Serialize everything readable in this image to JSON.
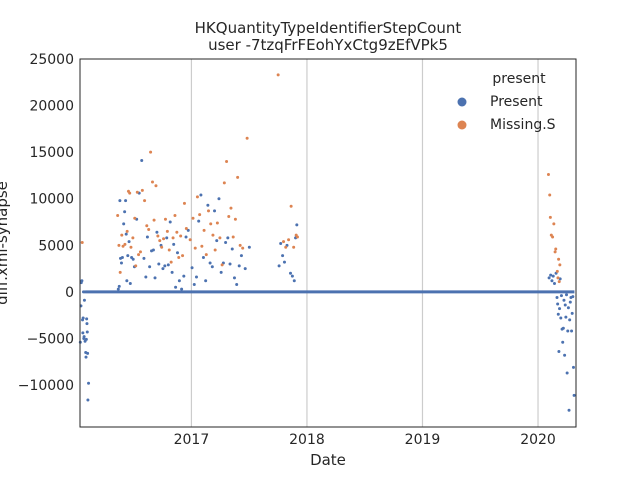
{
  "chart_data": {
    "type": "scatter",
    "title_line1": "HKQuantityTypeIdentifierStepCount",
    "title_line2": "user -7tzqFrFEohYxCtg9zEfVPk5",
    "xlabel": "Date",
    "ylabel": "diff.xml-synapse",
    "xlim": [
      "2016-01-15",
      "2020-04-30"
    ],
    "ylim": [
      -14500,
      25000
    ],
    "x_ticks": [
      {
        "date": "2017-01-01",
        "label": "2017"
      },
      {
        "date": "2018-01-01",
        "label": "2018"
      },
      {
        "date": "2019-01-01",
        "label": "2019"
      },
      {
        "date": "2020-01-01",
        "label": "2020"
      }
    ],
    "y_ticks": [
      {
        "value": 25000,
        "label": "25000"
      },
      {
        "value": 20000,
        "label": "20000"
      },
      {
        "value": 15000,
        "label": "15000"
      },
      {
        "value": 10000,
        "label": "10000"
      },
      {
        "value": 5000,
        "label": "5000"
      },
      {
        "value": 0,
        "label": "0"
      },
      {
        "value": -5000,
        "label": "−5000"
      },
      {
        "value": -10000,
        "label": "−10000"
      }
    ],
    "grid": {
      "x": true,
      "y": false
    },
    "legend": {
      "title": "present",
      "placement": "top-right",
      "entries": [
        {
          "label": "Present",
          "color": "#4c72b0"
        },
        {
          "label": "Missing.S",
          "color": "#dd8452"
        }
      ]
    },
    "zero_line": {
      "from": "2016-02-01",
      "to": "2020-04-25",
      "value": 0,
      "color": "#4c72b0"
    },
    "series": [
      {
        "name": "Present",
        "color": "#4c72b0",
        "points": [
          [
            "2016-01-16",
            -5400
          ],
          [
            "2016-01-18",
            -1500
          ],
          [
            "2016-01-19",
            1000
          ],
          [
            "2016-01-21",
            1200
          ],
          [
            "2016-01-23",
            -3000
          ],
          [
            "2016-01-24",
            -4400
          ],
          [
            "2016-01-25",
            -2800
          ],
          [
            "2016-01-27",
            -5000
          ],
          [
            "2016-01-28",
            -4800
          ],
          [
            "2016-01-29",
            -900
          ],
          [
            "2016-01-31",
            -5300
          ],
          [
            "2016-02-02",
            -6500
          ],
          [
            "2016-02-03",
            -7000
          ],
          [
            "2016-02-04",
            -5100
          ],
          [
            "2016-02-05",
            -2900
          ],
          [
            "2016-02-06",
            -3400
          ],
          [
            "2016-02-07",
            -4300
          ],
          [
            "2016-02-08",
            -6600
          ],
          [
            "2016-02-09",
            -11600
          ],
          [
            "2016-02-11",
            -9800
          ],
          [
            "2016-01-26",
            0
          ],
          [
            "2016-01-30",
            0
          ],
          [
            "2016-05-15",
            300
          ],
          [
            "2016-05-18",
            600
          ],
          [
            "2016-05-20",
            9800
          ],
          [
            "2016-05-22",
            3600
          ],
          [
            "2016-05-25",
            3100
          ],
          [
            "2016-05-28",
            3700
          ],
          [
            "2016-06-01",
            7300
          ],
          [
            "2016-06-04",
            8600
          ],
          [
            "2016-06-07",
            9800
          ],
          [
            "2016-06-09",
            6200
          ],
          [
            "2016-06-11",
            1200
          ],
          [
            "2016-06-14",
            3900
          ],
          [
            "2016-06-18",
            5400
          ],
          [
            "2016-06-22",
            900
          ],
          [
            "2016-06-26",
            3700
          ],
          [
            "2016-07-01",
            3500
          ],
          [
            "2016-07-05",
            2700
          ],
          [
            "2016-07-12",
            7800
          ],
          [
            "2016-07-20",
            10600
          ],
          [
            "2016-07-28",
            14100
          ],
          [
            "2016-08-04",
            3600
          ],
          [
            "2016-08-10",
            1600
          ],
          [
            "2016-08-15",
            5900
          ],
          [
            "2016-08-22",
            2700
          ],
          [
            "2016-08-28",
            4400
          ],
          [
            "2016-09-03",
            4500
          ],
          [
            "2016-09-08",
            1500
          ],
          [
            "2016-09-14",
            6400
          ],
          [
            "2016-09-20",
            3000
          ],
          [
            "2016-09-27",
            5000
          ],
          [
            "2016-10-03",
            2500
          ],
          [
            "2016-10-09",
            2800
          ],
          [
            "2016-10-15",
            5800
          ],
          [
            "2016-10-20",
            2900
          ],
          [
            "2016-10-26",
            7500
          ],
          [
            "2016-11-01",
            2100
          ],
          [
            "2016-11-06",
            5100
          ],
          [
            "2016-11-12",
            500
          ],
          [
            "2016-11-18",
            4200
          ],
          [
            "2016-11-24",
            1200
          ],
          [
            "2016-12-01",
            300
          ],
          [
            "2016-12-08",
            1700
          ],
          [
            "2016-12-15",
            5900
          ],
          [
            "2016-12-22",
            6600
          ],
          [
            "2017-01-03",
            2600
          ],
          [
            "2017-01-10",
            800
          ],
          [
            "2017-01-17",
            1600
          ],
          [
            "2017-01-24",
            7600
          ],
          [
            "2017-01-31",
            10400
          ],
          [
            "2017-02-08",
            3700
          ],
          [
            "2017-02-15",
            1200
          ],
          [
            "2017-02-22",
            9300
          ],
          [
            "2017-03-01",
            3100
          ],
          [
            "2017-03-08",
            2700
          ],
          [
            "2017-03-15",
            8700
          ],
          [
            "2017-03-22",
            5500
          ],
          [
            "2017-03-29",
            10000
          ],
          [
            "2017-04-05",
            2100
          ],
          [
            "2017-04-12",
            3100
          ],
          [
            "2017-04-19",
            5300
          ],
          [
            "2017-04-26",
            5800
          ],
          [
            "2017-05-03",
            3000
          ],
          [
            "2017-05-10",
            4600
          ],
          [
            "2017-05-17",
            1500
          ],
          [
            "2017-05-24",
            800
          ],
          [
            "2017-06-01",
            2800
          ],
          [
            "2017-06-08",
            3900
          ],
          [
            "2017-06-20",
            2500
          ],
          [
            "2017-07-03",
            4800
          ],
          [
            "2017-10-05",
            2800
          ],
          [
            "2017-10-10",
            5200
          ],
          [
            "2017-10-16",
            3900
          ],
          [
            "2017-10-22",
            3200
          ],
          [
            "2017-10-30",
            5000
          ],
          [
            "2017-11-10",
            2000
          ],
          [
            "2017-11-16",
            1700
          ],
          [
            "2017-11-22",
            1200
          ],
          [
            "2017-11-26",
            5800
          ],
          [
            "2017-11-30",
            7200
          ],
          [
            "2020-02-05",
            1500
          ],
          [
            "2020-02-10",
            1800
          ],
          [
            "2020-02-14",
            1200
          ],
          [
            "2020-02-18",
            1700
          ],
          [
            "2020-02-22",
            900
          ],
          [
            "2020-02-27",
            2000
          ],
          [
            "2020-03-01",
            -600
          ],
          [
            "2020-03-03",
            -1300
          ],
          [
            "2020-03-05",
            -2400
          ],
          [
            "2020-03-07",
            -6400
          ],
          [
            "2020-03-09",
            -1800
          ],
          [
            "2020-03-11",
            1400
          ],
          [
            "2020-03-13",
            -2800
          ],
          [
            "2020-03-15",
            -400
          ],
          [
            "2020-03-17",
            -4000
          ],
          [
            "2020-03-19",
            -5400
          ],
          [
            "2020-03-21",
            -3900
          ],
          [
            "2020-03-23",
            -900
          ],
          [
            "2020-03-25",
            -6800
          ],
          [
            "2020-03-27",
            -1400
          ],
          [
            "2020-03-29",
            -2700
          ],
          [
            "2020-03-31",
            -300
          ],
          [
            "2020-04-02",
            -8700
          ],
          [
            "2020-04-04",
            -4200
          ],
          [
            "2020-04-06",
            -1700
          ],
          [
            "2020-04-08",
            -12700
          ],
          [
            "2020-04-10",
            -3000
          ],
          [
            "2020-04-12",
            -1100
          ],
          [
            "2020-04-14",
            -600
          ],
          [
            "2020-04-16",
            -4200
          ],
          [
            "2020-04-18",
            -2300
          ],
          [
            "2020-04-20",
            -500
          ],
          [
            "2020-04-22",
            -8100
          ],
          [
            "2020-04-24",
            -11100
          ]
        ]
      },
      {
        "name": "Missing.S",
        "color": "#dd8452",
        "points": [
          [
            "2016-01-22",
            5300
          ],
          [
            "2016-05-13",
            8200
          ],
          [
            "2016-05-17",
            5000
          ],
          [
            "2016-05-21",
            2100
          ],
          [
            "2016-05-26",
            6100
          ],
          [
            "2016-05-30",
            4900
          ],
          [
            "2016-06-05",
            5100
          ],
          [
            "2016-06-12",
            6500
          ],
          [
            "2016-06-16",
            10800
          ],
          [
            "2016-06-20",
            10600
          ],
          [
            "2016-06-24",
            4800
          ],
          [
            "2016-06-30",
            5800
          ],
          [
            "2016-07-06",
            7900
          ],
          [
            "2016-07-09",
            2800
          ],
          [
            "2016-07-14",
            10700
          ],
          [
            "2016-07-18",
            4000
          ],
          [
            "2016-07-24",
            4300
          ],
          [
            "2016-07-30",
            10900
          ],
          [
            "2016-08-06",
            9800
          ],
          [
            "2016-08-13",
            7100
          ],
          [
            "2016-08-19",
            6700
          ],
          [
            "2016-08-25",
            15000
          ],
          [
            "2016-08-31",
            11800
          ],
          [
            "2016-09-05",
            7700
          ],
          [
            "2016-09-11",
            11400
          ],
          [
            "2016-09-17",
            6000
          ],
          [
            "2016-09-23",
            5500
          ],
          [
            "2016-09-29",
            4800
          ],
          [
            "2016-10-05",
            5700
          ],
          [
            "2016-10-11",
            7800
          ],
          [
            "2016-10-17",
            6500
          ],
          [
            "2016-10-23",
            4500
          ],
          [
            "2016-10-29",
            3200
          ],
          [
            "2016-11-04",
            5800
          ],
          [
            "2016-11-10",
            8200
          ],
          [
            "2016-11-16",
            6400
          ],
          [
            "2016-11-22",
            3700
          ],
          [
            "2016-11-28",
            6000
          ],
          [
            "2016-12-04",
            3900
          ],
          [
            "2016-12-10",
            9500
          ],
          [
            "2016-12-16",
            6800
          ],
          [
            "2016-12-28",
            5600
          ],
          [
            "2017-01-06",
            7900
          ],
          [
            "2017-01-13",
            4700
          ],
          [
            "2017-01-20",
            10200
          ],
          [
            "2017-01-27",
            8300
          ],
          [
            "2017-02-03",
            4900
          ],
          [
            "2017-02-10",
            6600
          ],
          [
            "2017-02-17",
            4000
          ],
          [
            "2017-02-24",
            8700
          ],
          [
            "2017-03-03",
            7300
          ],
          [
            "2017-03-10",
            6100
          ],
          [
            "2017-03-17",
            4500
          ],
          [
            "2017-03-24",
            7400
          ],
          [
            "2017-04-01",
            5800
          ],
          [
            "2017-04-08",
            2900
          ],
          [
            "2017-04-15",
            11700
          ],
          [
            "2017-04-22",
            14000
          ],
          [
            "2017-04-29",
            8100
          ],
          [
            "2017-05-06",
            9000
          ],
          [
            "2017-05-13",
            5900
          ],
          [
            "2017-05-20",
            7800
          ],
          [
            "2017-05-27",
            12300
          ],
          [
            "2017-06-04",
            5000
          ],
          [
            "2017-06-12",
            4700
          ],
          [
            "2017-06-26",
            16500
          ],
          [
            "2017-10-02",
            23300
          ],
          [
            "2017-10-19",
            5400
          ],
          [
            "2017-10-26",
            4800
          ],
          [
            "2017-11-04",
            5600
          ],
          [
            "2017-11-12",
            9200
          ],
          [
            "2017-11-20",
            4800
          ],
          [
            "2017-11-28",
            6100
          ],
          [
            "2017-12-02",
            5900
          ],
          [
            "2020-02-03",
            12600
          ],
          [
            "2020-02-07",
            10400
          ],
          [
            "2020-02-09",
            8000
          ],
          [
            "2020-02-12",
            6100
          ],
          [
            "2020-02-16",
            5900
          ],
          [
            "2020-02-20",
            7300
          ],
          [
            "2020-02-24",
            4300
          ],
          [
            "2020-02-26",
            4600
          ],
          [
            "2020-03-02",
            2200
          ],
          [
            "2020-03-04",
            1500
          ],
          [
            "2020-03-06",
            3500
          ],
          [
            "2020-03-08",
            1100
          ],
          [
            "2020-03-10",
            2900
          ]
        ]
      }
    ]
  }
}
